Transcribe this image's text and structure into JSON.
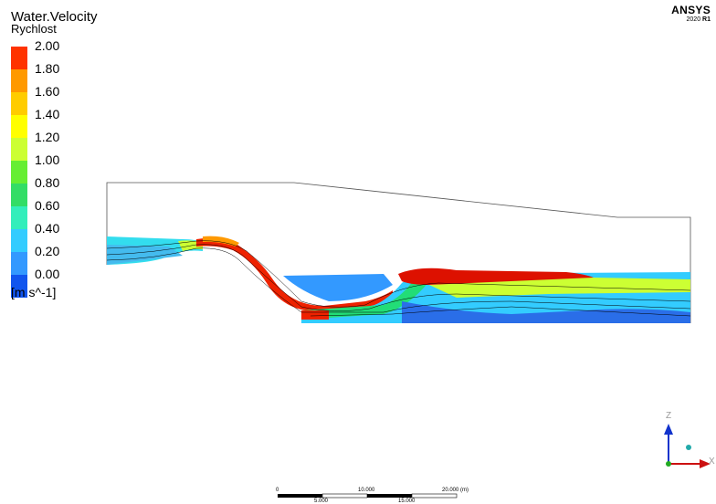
{
  "legend": {
    "variable": "Water.Velocity",
    "name": "Rychlost",
    "unit": "[m s^-1]",
    "ticks": [
      "2.00",
      "1.80",
      "1.60",
      "1.40",
      "1.20",
      "1.00",
      "0.80",
      "0.60",
      "0.40",
      "0.20",
      "0.00"
    ],
    "colors": [
      "#ff3300",
      "#ff9900",
      "#ffcc00",
      "#ffff00",
      "#ccff33",
      "#66ee33",
      "#33dd66",
      "#33eebb",
      "#33ccff",
      "#3399ff",
      "#1155ee"
    ]
  },
  "brand": {
    "name": "ANSYS",
    "version": "2020",
    "release": "R1"
  },
  "scale": {
    "top_labels": [
      "0",
      "10.000",
      "20.000 (m)"
    ],
    "bottom_labels": [
      "5.000",
      "15.000"
    ]
  },
  "axes": {
    "z": "Z",
    "x": "X"
  }
}
